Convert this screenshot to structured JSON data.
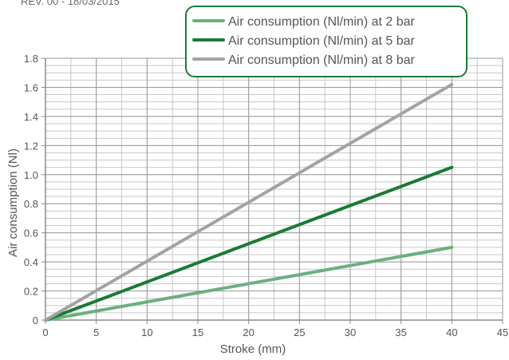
{
  "header_note": "REV. 00 - 18/03/2015",
  "chart_data": {
    "type": "line",
    "title": "",
    "xlabel": "Stroke (mm)",
    "ylabel": "Air consumption (Nl)",
    "xlim": [
      0,
      45
    ],
    "ylim": [
      0,
      1.8
    ],
    "x_ticks": [
      0,
      5,
      10,
      15,
      20,
      25,
      30,
      35,
      40,
      45
    ],
    "y_ticks": [
      0,
      0.2,
      0.4,
      0.6,
      0.8,
      1.0,
      1.2,
      1.4,
      1.6,
      1.8
    ],
    "y_tick_labels": [
      "0",
      "0.2",
      "0.4",
      "0.6",
      "0.8",
      "1.0",
      "1.2",
      "1.4",
      "1.6",
      "1.8"
    ],
    "x_minor_step": 2.5,
    "y_minor_step": 0.05,
    "grid": true,
    "legend_position": "top-right",
    "colors": {
      "grid_major": "#9a9a9a",
      "grid_minor": "#c8c8c8",
      "axis": "#8a8a8a",
      "legend_border": "#1e7a34"
    },
    "series": [
      {
        "name": "Air consumption (Nl/min) at 2 bar",
        "color": "#6bb07f",
        "x": [
          0,
          40
        ],
        "y": [
          0,
          0.5
        ]
      },
      {
        "name": "Air consumption (Nl/min) at 5 bar",
        "color": "#1b7a34",
        "x": [
          0,
          40
        ],
        "y": [
          0,
          1.05
        ]
      },
      {
        "name": "Air consumption (Nl/min) at 8 bar",
        "color": "#a3a3a3",
        "x": [
          0,
          40
        ],
        "y": [
          0,
          1.62
        ]
      }
    ]
  }
}
